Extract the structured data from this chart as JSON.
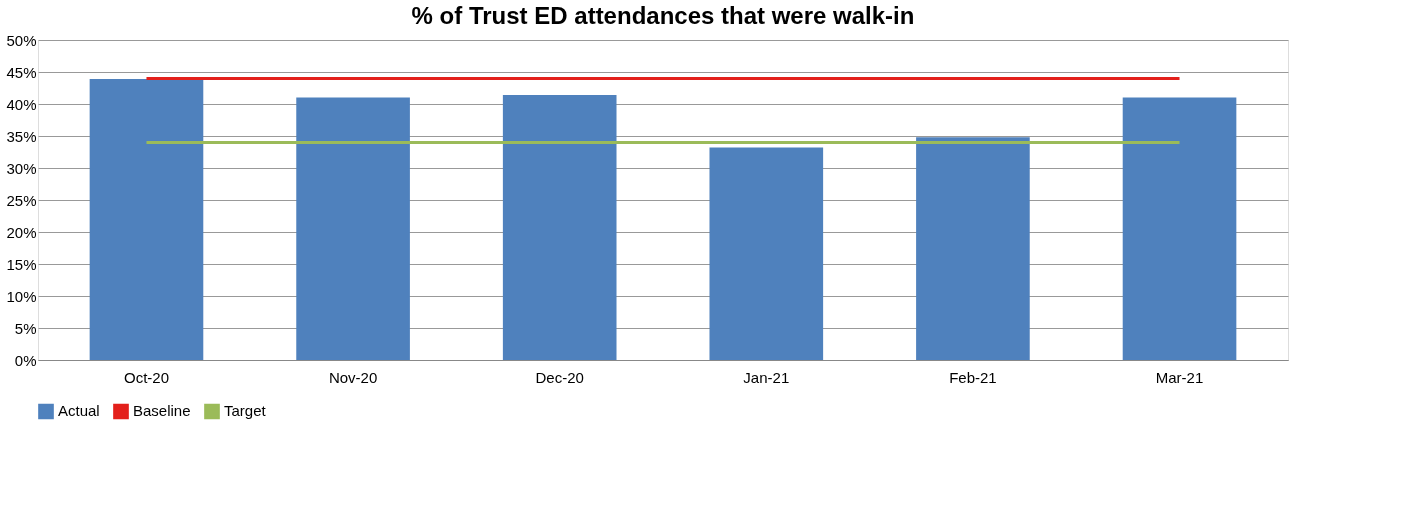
{
  "chart_data": {
    "type": "bar",
    "title": "% of Trust ED attendances that were walk-in",
    "categories": [
      "Oct-20",
      "Nov-20",
      "Dec-20",
      "Jan-21",
      "Feb-21",
      "Mar-21"
    ],
    "series": [
      {
        "name": "Actual",
        "color": "#4f81bd",
        "values": [
          43.9,
          41,
          41.4,
          33.2,
          34.8,
          41
        ]
      },
      {
        "name": "Baseline",
        "type": "line",
        "color": "#e3201b",
        "values": [
          44,
          44,
          44,
          44,
          44,
          44
        ]
      },
      {
        "name": "Target",
        "type": "line",
        "color": "#9bbb59",
        "values": [
          34,
          34,
          34,
          34,
          34,
          34
        ]
      }
    ],
    "ylim": [
      0,
      50
    ],
    "yticks": [
      {
        "value": 0,
        "label": "0%"
      },
      {
        "value": 5,
        "label": "5%"
      },
      {
        "value": 10,
        "label": "10%"
      },
      {
        "value": 15,
        "label": "15%"
      },
      {
        "value": 20,
        "label": "20%"
      },
      {
        "value": 25,
        "label": "25%"
      },
      {
        "value": 30,
        "label": "30%"
      },
      {
        "value": 35,
        "label": "35%"
      },
      {
        "value": 40,
        "label": "40%"
      },
      {
        "value": 45,
        "label": "45%"
      },
      {
        "value": 50,
        "label": "50%"
      }
    ],
    "grid": "y",
    "legend": "bottom"
  }
}
